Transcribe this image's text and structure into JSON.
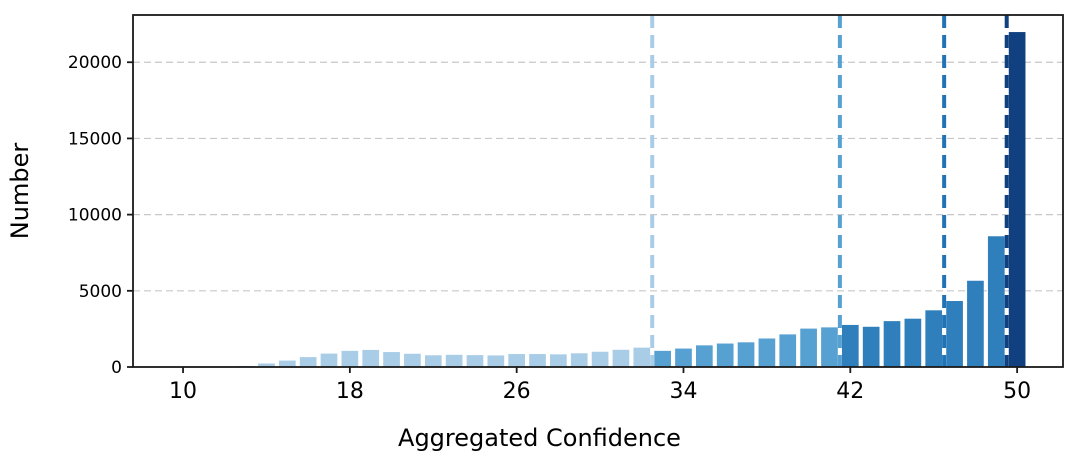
{
  "figure": {
    "background": "#ffffff",
    "spine_color": "#1a1a1a",
    "grid_color": "#c8c8c8",
    "text_color": "#000000"
  },
  "chart_data": {
    "type": "bar",
    "title": "",
    "xlabel": "Aggregated Confidence",
    "ylabel": "Number",
    "xlim": [
      7.6,
      52.2
    ],
    "ylim": [
      0,
      23100
    ],
    "xticks": [
      10,
      18,
      26,
      34,
      42,
      50
    ],
    "yticks": [
      0,
      5000,
      10000,
      15000,
      20000
    ],
    "grid": "horizontal dashed gridlines at yticks",
    "legend_position": "none",
    "bar_width_units": 0.8,
    "groups": [
      {
        "name": "confidence-band-1-light",
        "color": "#a9cde7"
      },
      {
        "name": "confidence-band-2-medium",
        "color": "#56a0d2"
      },
      {
        "name": "confidence-band-3-dark",
        "color": "#2e7fbc"
      },
      {
        "name": "confidence-band-4-navy",
        "color": "#10407f"
      }
    ],
    "bars": [
      {
        "x": 13,
        "count": 70,
        "group": 0
      },
      {
        "x": 14,
        "count": 230,
        "group": 0
      },
      {
        "x": 15,
        "count": 420,
        "group": 0
      },
      {
        "x": 16,
        "count": 650,
        "group": 0
      },
      {
        "x": 17,
        "count": 880,
        "group": 0
      },
      {
        "x": 18,
        "count": 1060,
        "group": 0
      },
      {
        "x": 19,
        "count": 1120,
        "group": 0
      },
      {
        "x": 20,
        "count": 980,
        "group": 0
      },
      {
        "x": 21,
        "count": 870,
        "group": 0
      },
      {
        "x": 22,
        "count": 770,
        "group": 0
      },
      {
        "x": 23,
        "count": 800,
        "group": 0
      },
      {
        "x": 24,
        "count": 780,
        "group": 0
      },
      {
        "x": 25,
        "count": 760,
        "group": 0
      },
      {
        "x": 26,
        "count": 850,
        "group": 0
      },
      {
        "x": 27,
        "count": 850,
        "group": 0
      },
      {
        "x": 28,
        "count": 830,
        "group": 0
      },
      {
        "x": 29,
        "count": 900,
        "group": 0
      },
      {
        "x": 30,
        "count": 1000,
        "group": 0
      },
      {
        "x": 31,
        "count": 1130,
        "group": 0
      },
      {
        "x": 32,
        "count": 1270,
        "group": 0
      },
      {
        "x": 33,
        "count": 1060,
        "group": 1
      },
      {
        "x": 34,
        "count": 1210,
        "group": 1
      },
      {
        "x": 35,
        "count": 1420,
        "group": 1
      },
      {
        "x": 36,
        "count": 1540,
        "group": 1
      },
      {
        "x": 37,
        "count": 1620,
        "group": 1
      },
      {
        "x": 38,
        "count": 1870,
        "group": 1
      },
      {
        "x": 39,
        "count": 2140,
        "group": 1
      },
      {
        "x": 40,
        "count": 2520,
        "group": 1
      },
      {
        "x": 41,
        "count": 2600,
        "group": 1
      },
      {
        "x": 42,
        "count": 2760,
        "group": 2
      },
      {
        "x": 43,
        "count": 2640,
        "group": 2
      },
      {
        "x": 44,
        "count": 3010,
        "group": 2
      },
      {
        "x": 45,
        "count": 3170,
        "group": 2
      },
      {
        "x": 46,
        "count": 3720,
        "group": 2
      },
      {
        "x": 47,
        "count": 4330,
        "group": 2
      },
      {
        "x": 48,
        "count": 5660,
        "group": 2
      },
      {
        "x": 49,
        "count": 8580,
        "group": 2
      },
      {
        "x": 50,
        "count": 21980,
        "group": 3
      }
    ],
    "vlines": [
      {
        "x": 32.5,
        "color": "#a9cde7",
        "style": "dashed"
      },
      {
        "x": 41.5,
        "color": "#56a0d2",
        "style": "dashed"
      },
      {
        "x": 46.5,
        "color": "#2272b6",
        "style": "dashed"
      },
      {
        "x": 49.5,
        "color": "#10407f",
        "style": "dashed"
      }
    ]
  }
}
